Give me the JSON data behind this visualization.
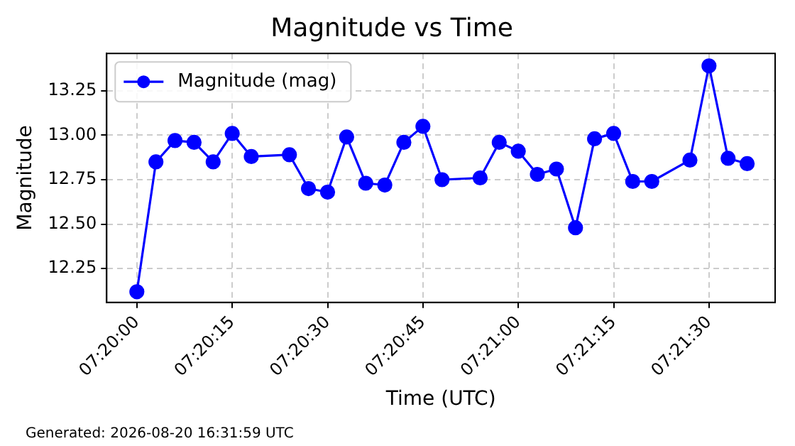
{
  "chart_data": {
    "type": "line",
    "title": "Magnitude vs Time",
    "xlabel": "Time (UTC)",
    "ylabel": "Magnitude",
    "x": [
      7.333333,
      7.334167,
      7.335,
      7.335833,
      7.336667,
      7.3375,
      7.338333,
      7.34,
      7.340833,
      7.341667,
      7.3425,
      7.343333,
      7.344167,
      7.345,
      7.345833,
      7.346667,
      7.348333,
      7.349167,
      7.35,
      7.350833,
      7.351667,
      7.3525,
      7.353333,
      7.354167,
      7.355,
      7.355833,
      7.3575,
      7.358333,
      7.359167,
      7.36
    ],
    "series": [
      {
        "name": "Magnitude (mag)",
        "color": "#0000ff",
        "values": [
          12.12,
          12.85,
          12.97,
          12.96,
          12.85,
          13.01,
          12.88,
          12.89,
          12.7,
          12.68,
          12.99,
          12.73,
          12.72,
          12.96,
          13.05,
          12.75,
          12.76,
          12.96,
          12.91,
          12.78,
          12.81,
          12.48,
          12.98,
          13.01,
          12.74,
          12.74,
          12.86,
          13.39,
          12.87,
          12.84
        ]
      }
    ],
    "xlim": [
      7.332014,
      7.361222
    ],
    "xticks": [
      {
        "value": 7.333333,
        "label": "07:20:00"
      },
      {
        "value": 7.3375,
        "label": "07:20:15"
      },
      {
        "value": 7.341667,
        "label": "07:20:30"
      },
      {
        "value": 7.345833,
        "label": "07:20:45"
      },
      {
        "value": 7.35,
        "label": "07:21:00"
      },
      {
        "value": 7.354167,
        "label": "07:21:15"
      },
      {
        "value": 7.358333,
        "label": "07:21:30"
      }
    ],
    "ylim": [
      12.06,
      13.46
    ],
    "yticks": [
      12.25,
      {
        "value": 12.5,
        "label": "12.50"
      },
      12.75,
      {
        "value": 13,
        "label": "13.00"
      },
      13.25
    ],
    "grid": true,
    "legend": "top left",
    "marker": "circle",
    "line_style": "solid",
    "annotations": [
      "Generated: 2026-08-20 16:31:59 UTC"
    ]
  }
}
